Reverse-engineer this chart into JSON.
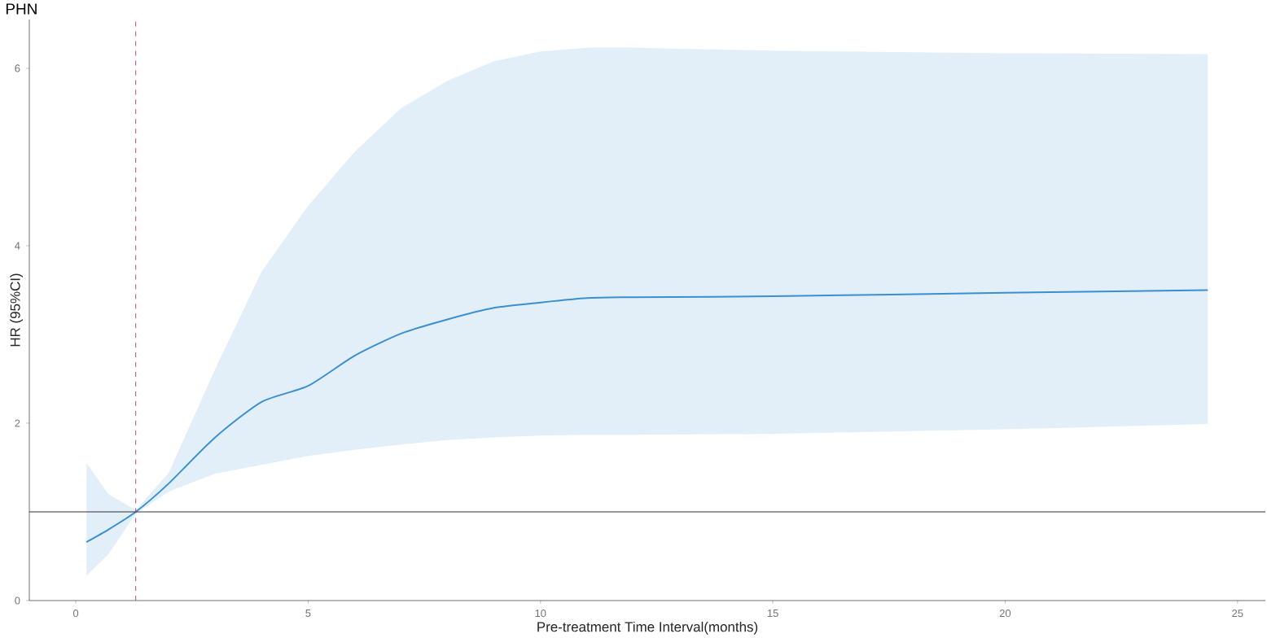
{
  "chart_data": {
    "type": "line",
    "title": "PHN",
    "xlabel": "Pre-treatment Time Interval(months)",
    "ylabel": "HR (95%CI)",
    "xlim": [
      -1.0,
      25.6
    ],
    "ylim": [
      0,
      6.55
    ],
    "xticks": [
      0,
      5,
      10,
      15,
      20,
      25
    ],
    "yticks": [
      0,
      2,
      4,
      6
    ],
    "grid": false,
    "series": [
      {
        "color": "#3a8fd0",
        "x": [
          0.23,
          0.7,
          1.29,
          2,
          3,
          4,
          5,
          6,
          7,
          8,
          9,
          10,
          11,
          12,
          15,
          20,
          24.36
        ],
        "values": [
          0.66,
          0.8,
          1.0,
          1.32,
          1.84,
          2.24,
          2.42,
          2.76,
          3.01,
          3.17,
          3.3,
          3.36,
          3.41,
          3.42,
          3.43,
          3.47,
          3.5
        ],
        "lower": [
          0.28,
          0.52,
          0.98,
          1.23,
          1.43,
          1.53,
          1.63,
          1.7,
          1.76,
          1.81,
          1.84,
          1.86,
          1.87,
          1.87,
          1.88,
          1.93,
          1.99
        ],
        "upper": [
          1.55,
          1.2,
          1.02,
          1.44,
          2.61,
          3.71,
          4.45,
          5.06,
          5.55,
          5.86,
          6.08,
          6.19,
          6.23,
          6.23,
          6.2,
          6.17,
          6.16
        ]
      }
    ],
    "ref_lines": [
      {
        "axis": "y",
        "value": 1,
        "color": "#333333",
        "line_style": "solid"
      },
      {
        "axis": "x",
        "value": 1.29,
        "color": "#c04080",
        "line_style": "dashed"
      }
    ]
  }
}
